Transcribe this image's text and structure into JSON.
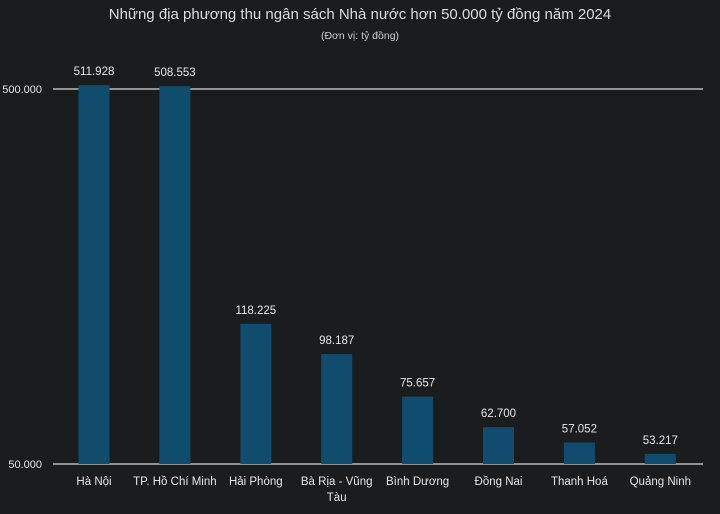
{
  "chart_data": {
    "type": "bar",
    "title": "Những địa phương thu ngân sách Nhà nước hơn 50.000 tỷ đồng năm 2024",
    "subtitle": "(Đơn vị: tỷ đồng)",
    "yscale": "log",
    "ylim": [
      50000,
      500000
    ],
    "yticks": [
      {
        "value": 50000,
        "label": "50.000"
      },
      {
        "value": 500000,
        "label": "500.000"
      }
    ],
    "grid": true,
    "bar_color": "#0f4c6e",
    "background": "#1b1c1e",
    "categories": [
      "Hà Nội",
      "TP. Hồ Chí Minh",
      "Hải Phòng",
      "Bà Rịa - Vũng Tàu",
      "Bình Dương",
      "Đồng Nai",
      "Thanh Hoá",
      "Quảng Ninh"
    ],
    "values": [
      511928,
      508553,
      118225,
      98187,
      75657,
      62700,
      57052,
      53217
    ],
    "value_labels": [
      "511.928",
      "508.553",
      "118.225",
      "98.187",
      "75.657",
      "62.700",
      "57.052",
      "53.217"
    ]
  }
}
